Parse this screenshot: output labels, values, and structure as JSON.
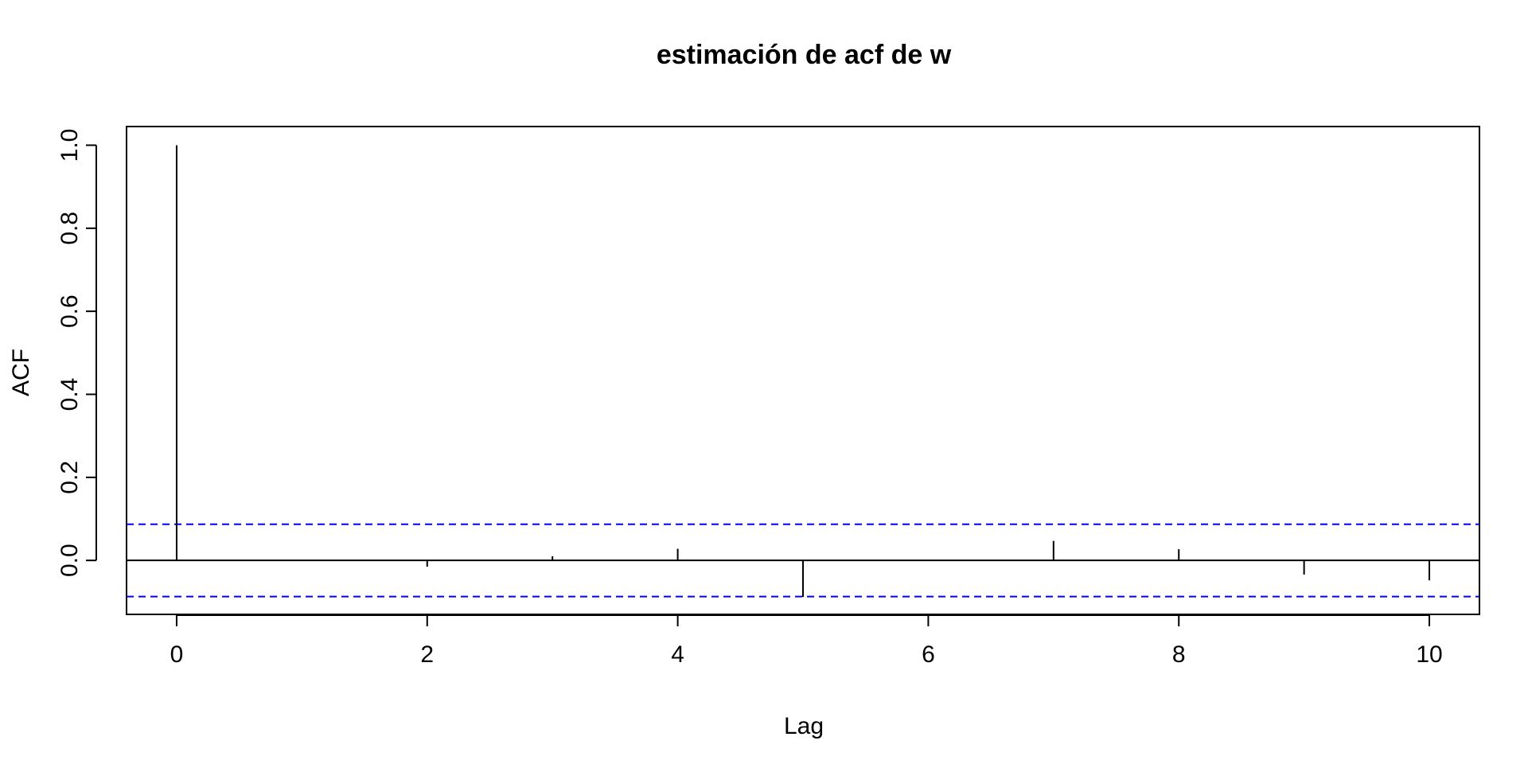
{
  "chart_data": {
    "type": "bar",
    "title": "estimación de acf de w",
    "xlabel": "Lag",
    "ylabel": "ACF",
    "x": [
      0,
      1,
      2,
      3,
      4,
      5,
      6,
      7,
      8,
      9,
      10
    ],
    "values": [
      1.0,
      0.0,
      -0.015,
      0.01,
      0.028,
      -0.088,
      0.0,
      0.047,
      0.027,
      -0.034,
      -0.048
    ],
    "xlim": [
      -0.4,
      10.4
    ],
    "ylim": [
      -0.13,
      1.045
    ],
    "x_ticks": [
      0,
      2,
      4,
      6,
      8,
      10
    ],
    "x_tick_labels": [
      "0",
      "2",
      "4",
      "6",
      "8",
      "10"
    ],
    "y_ticks": [
      0,
      0.2,
      0.4,
      0.6,
      0.8,
      1.0
    ],
    "y_tick_labels": [
      "0.0",
      "0.2",
      "0.4",
      "0.6",
      "0.8",
      "1.0"
    ],
    "confidence_bounds": [
      0.087,
      -0.087
    ],
    "zero_line": 0,
    "grid": false,
    "colors": {
      "lag_bars": "#000000",
      "confidence_lines": "#0000ff",
      "axes": "#000000"
    }
  }
}
